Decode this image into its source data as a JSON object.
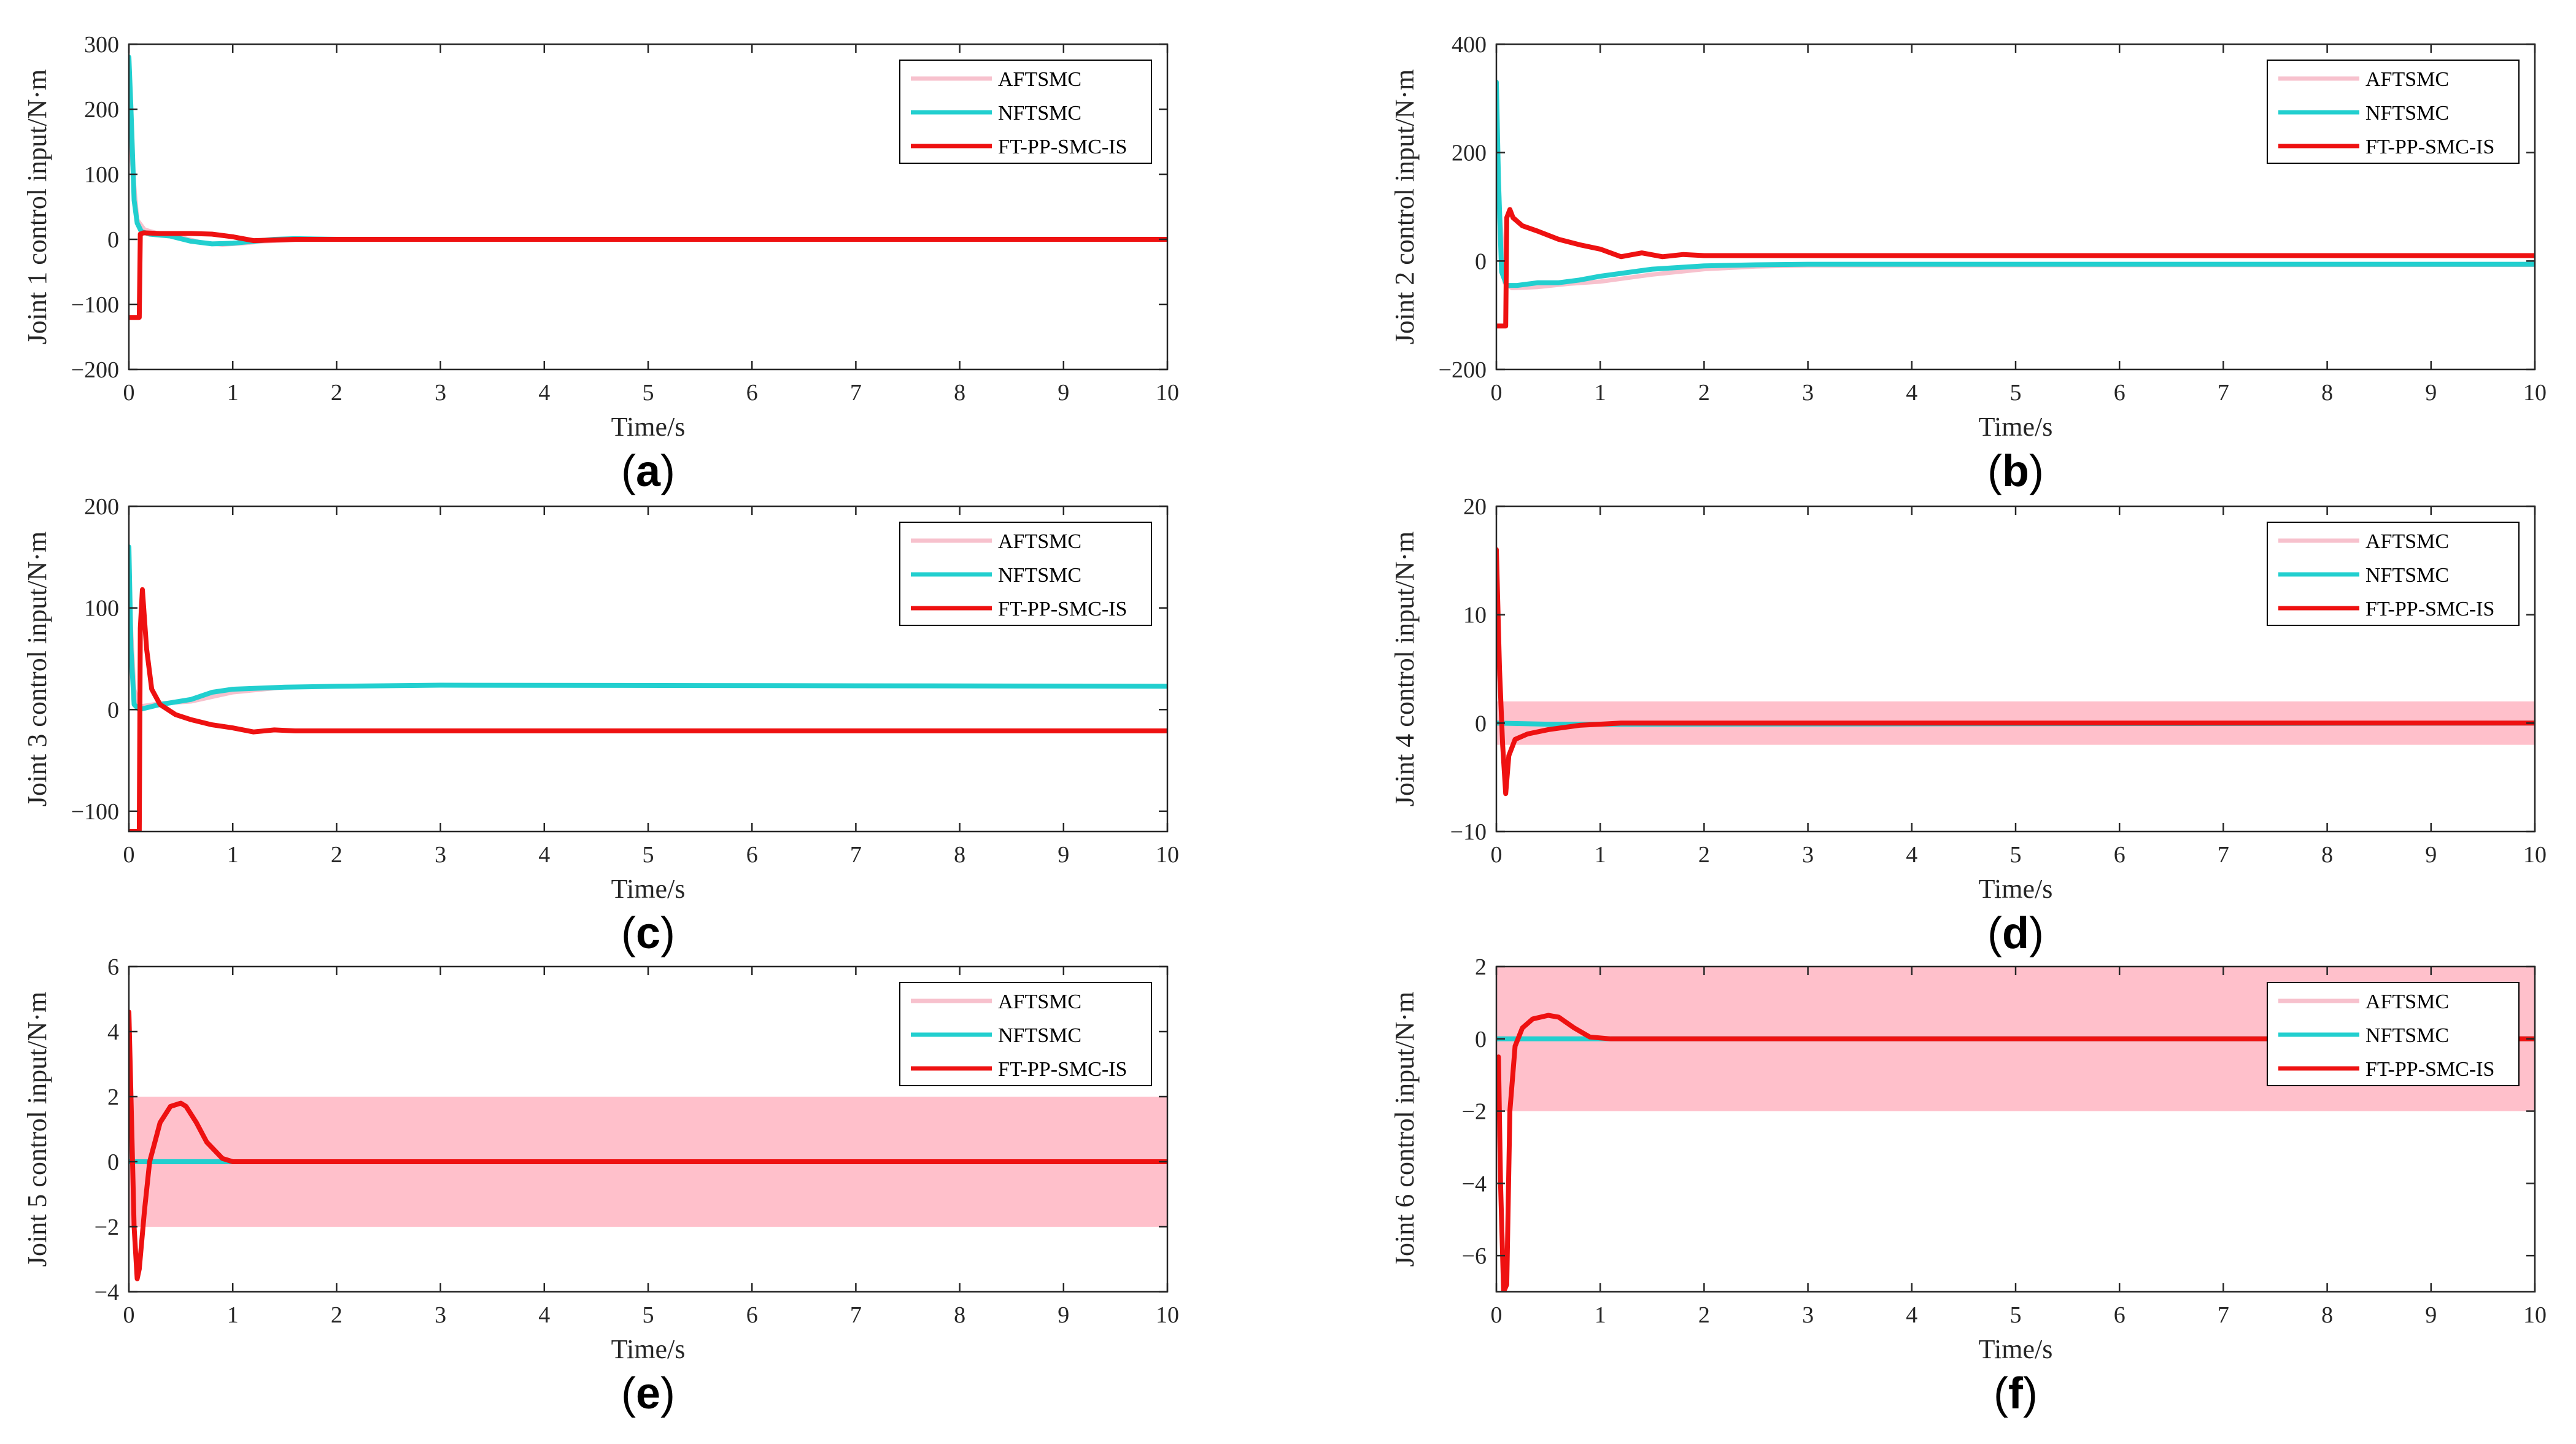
{
  "figure": {
    "colors": {
      "AFTSMC": "#f7c1cd",
      "NFTSMC": "#22cfcf",
      "FT-PP-SMC-IS": "#ee1111",
      "band": "#ffc0cb",
      "axis": "#262626"
    }
  },
  "chart_data": [
    {
      "type": "line",
      "panel": "a",
      "xlabel": "Time/s",
      "ylabel": "Joint 1 control input/N·m",
      "xlim": [
        0,
        10
      ],
      "ylim": [
        -200,
        300
      ],
      "xticks": [
        0,
        1,
        2,
        3,
        4,
        5,
        6,
        7,
        8,
        9,
        10
      ],
      "yticks": [
        -200,
        -100,
        0,
        100,
        200,
        300
      ],
      "legend": [
        "AFTSMC",
        "NFTSMC",
        "FT-PP-SMC-IS"
      ],
      "legend_position": "top-right",
      "band": null,
      "series": [
        {
          "name": "AFTSMC",
          "x": [
            0,
            0.03,
            0.08,
            0.15,
            0.3,
            0.5,
            0.7,
            0.9,
            1.1,
            1.3,
            1.6,
            2,
            3,
            10
          ],
          "y": [
            250,
            120,
            30,
            15,
            8,
            3,
            -5,
            -8,
            -6,
            -3,
            -1,
            0,
            0,
            0
          ]
        },
        {
          "name": "NFTSMC",
          "x": [
            0,
            0.02,
            0.05,
            0.08,
            0.12,
            0.2,
            0.4,
            0.6,
            0.8,
            1.0,
            1.2,
            1.4,
            1.6,
            2,
            3,
            10
          ],
          "y": [
            280,
            200,
            60,
            25,
            12,
            8,
            5,
            -3,
            -7,
            -6,
            -3,
            0,
            1,
            0,
            0,
            0
          ]
        },
        {
          "name": "FT-PP-SMC-IS",
          "x": [
            0,
            0.1,
            0.11,
            0.14,
            0.3,
            0.6,
            0.8,
            1.0,
            1.2,
            1.4,
            1.6,
            2,
            3,
            10
          ],
          "y": [
            -120,
            -120,
            8,
            10,
            9,
            9,
            8,
            4,
            -2,
            -1,
            0,
            0,
            0,
            0
          ]
        }
      ]
    },
    {
      "type": "line",
      "panel": "b",
      "xlabel": "Time/s",
      "ylabel": "Joint 2 control input/N·m",
      "xlim": [
        0,
        10
      ],
      "ylim": [
        -200,
        400
      ],
      "xticks": [
        0,
        1,
        2,
        3,
        4,
        5,
        6,
        7,
        8,
        9,
        10
      ],
      "yticks": [
        -200,
        0,
        200,
        400
      ],
      "legend": [
        "AFTSMC",
        "NFTSMC",
        "FT-PP-SMC-IS"
      ],
      "legend_position": "top-right",
      "band": null,
      "series": [
        {
          "name": "AFTSMC",
          "x": [
            0,
            0.03,
            0.08,
            0.15,
            0.4,
            0.7,
            1.0,
            1.5,
            2,
            2.5,
            3,
            10
          ],
          "y": [
            300,
            100,
            -40,
            -50,
            -48,
            -42,
            -38,
            -25,
            -15,
            -10,
            -8,
            -7
          ]
        },
        {
          "name": "NFTSMC",
          "x": [
            0,
            0.02,
            0.05,
            0.1,
            0.2,
            0.4,
            0.6,
            0.8,
            1.0,
            1.5,
            2,
            2.5,
            3,
            10
          ],
          "y": [
            330,
            150,
            -20,
            -45,
            -45,
            -40,
            -40,
            -35,
            -28,
            -15,
            -9,
            -7,
            -6,
            -6
          ]
        },
        {
          "name": "FT-PP-SMC-IS",
          "x": [
            0,
            0.09,
            0.1,
            0.13,
            0.16,
            0.25,
            0.4,
            0.6,
            0.8,
            1.0,
            1.2,
            1.4,
            1.6,
            1.8,
            2,
            3,
            10
          ],
          "y": [
            -120,
            -120,
            80,
            95,
            80,
            65,
            55,
            40,
            30,
            22,
            8,
            15,
            8,
            12,
            10,
            10,
            10
          ]
        }
      ]
    },
    {
      "type": "line",
      "panel": "c",
      "xlabel": "Time/s",
      "ylabel": "Joint 3 control input/N·m",
      "xlim": [
        0,
        10
      ],
      "ylim": [
        -120,
        200
      ],
      "xticks": [
        0,
        1,
        2,
        3,
        4,
        5,
        6,
        7,
        8,
        9,
        10
      ],
      "yticks": [
        -100,
        0,
        100,
        200
      ],
      "legend": [
        "AFTSMC",
        "NFTSMC",
        "FT-PP-SMC-IS"
      ],
      "legend_position": "top-right",
      "band": null,
      "series": [
        {
          "name": "AFTSMC",
          "x": [
            0,
            0.05,
            0.1,
            0.3,
            0.6,
            1.0,
            1.5,
            2,
            3,
            10
          ],
          "y": [
            120,
            20,
            3,
            6,
            8,
            17,
            22,
            23,
            24,
            23
          ]
        },
        {
          "name": "NFTSMC",
          "x": [
            0,
            0.02,
            0.05,
            0.1,
            0.3,
            0.6,
            0.8,
            1.0,
            1.5,
            2,
            3,
            10
          ],
          "y": [
            160,
            60,
            5,
            0,
            5,
            10,
            17,
            20,
            22,
            23,
            24,
            23
          ]
        },
        {
          "name": "FT-PP-SMC-IS",
          "x": [
            0,
            0.1,
            0.11,
            0.13,
            0.17,
            0.22,
            0.3,
            0.45,
            0.6,
            0.8,
            1.0,
            1.2,
            1.4,
            1.6,
            2,
            3,
            10
          ],
          "y": [
            -120,
            -120,
            80,
            118,
            60,
            20,
            5,
            -5,
            -10,
            -15,
            -18,
            -22,
            -20,
            -21,
            -21,
            -21,
            -21
          ]
        }
      ]
    },
    {
      "type": "line",
      "panel": "d",
      "xlabel": "Time/s",
      "ylabel": "Joint 4 control input/N·m",
      "xlim": [
        0,
        10
      ],
      "ylim": [
        -10,
        20
      ],
      "xticks": [
        0,
        1,
        2,
        3,
        4,
        5,
        6,
        7,
        8,
        9,
        10
      ],
      "yticks": [
        -10,
        0,
        10,
        20
      ],
      "legend": [
        "AFTSMC",
        "NFTSMC",
        "FT-PP-SMC-IS"
      ],
      "legend_position": "top-right",
      "band": [
        -2,
        2
      ],
      "series": [
        {
          "name": "AFTSMC",
          "x": [
            0,
            10
          ],
          "y": [
            0,
            0
          ]
        },
        {
          "name": "NFTSMC",
          "x": [
            0,
            0.5,
            1,
            10
          ],
          "y": [
            0,
            -0.1,
            -0.1,
            0
          ]
        },
        {
          "name": "FT-PP-SMC-IS",
          "x": [
            0,
            0.03,
            0.06,
            0.09,
            0.12,
            0.18,
            0.3,
            0.5,
            0.8,
            1.2,
            10
          ],
          "y": [
            16,
            5,
            -2,
            -6.5,
            -3,
            -1.5,
            -1,
            -0.6,
            -0.2,
            0,
            0
          ]
        }
      ]
    },
    {
      "type": "line",
      "panel": "e",
      "xlabel": "Time/s",
      "ylabel": "Joint 5 control input/N·m",
      "xlim": [
        0,
        10
      ],
      "ylim": [
        -4,
        6
      ],
      "xticks": [
        0,
        1,
        2,
        3,
        4,
        5,
        6,
        7,
        8,
        9,
        10
      ],
      "yticks": [
        -4,
        -2,
        0,
        2,
        4,
        6
      ],
      "legend": [
        "AFTSMC",
        "NFTSMC",
        "FT-PP-SMC-IS"
      ],
      "legend_position": "top-right",
      "band": [
        -2,
        2
      ],
      "series": [
        {
          "name": "AFTSMC",
          "x": [
            0,
            10
          ],
          "y": [
            0,
            0
          ]
        },
        {
          "name": "NFTSMC",
          "x": [
            0,
            10
          ],
          "y": [
            0,
            0
          ]
        },
        {
          "name": "FT-PP-SMC-IS",
          "x": [
            0,
            0.02,
            0.05,
            0.08,
            0.1,
            0.15,
            0.2,
            0.3,
            0.4,
            0.5,
            0.55,
            0.65,
            0.75,
            0.9,
            1.0,
            10
          ],
          "y": [
            4.6,
            2,
            -2,
            -3.6,
            -3.3,
            -1.5,
            0,
            1.2,
            1.7,
            1.8,
            1.7,
            1.2,
            0.6,
            0.1,
            0,
            0
          ]
        }
      ]
    },
    {
      "type": "line",
      "panel": "f",
      "xlabel": "Time/s",
      "ylabel": "Joint 6 control input/N·m",
      "xlim": [
        0,
        10
      ],
      "ylim": [
        -7,
        2
      ],
      "xticks": [
        0,
        1,
        2,
        3,
        4,
        5,
        6,
        7,
        8,
        9,
        10
      ],
      "yticks": [
        -6,
        -4,
        -2,
        0,
        2
      ],
      "legend": [
        "AFTSMC",
        "NFTSMC",
        "FT-PP-SMC-IS"
      ],
      "legend_position": "top-right",
      "band": [
        -2,
        2
      ],
      "series": [
        {
          "name": "AFTSMC",
          "x": [
            0,
            10
          ],
          "y": [
            0,
            0
          ]
        },
        {
          "name": "NFTSMC",
          "x": [
            0,
            10
          ],
          "y": [
            0,
            0
          ]
        },
        {
          "name": "FT-PP-SMC-IS",
          "x": [
            0,
            0.02,
            0.04,
            0.07,
            0.1,
            0.13,
            0.18,
            0.25,
            0.35,
            0.5,
            0.6,
            0.75,
            0.9,
            1.1,
            10
          ],
          "y": [
            -1,
            -0.5,
            -4,
            -7,
            -6.8,
            -2,
            -0.2,
            0.3,
            0.55,
            0.65,
            0.6,
            0.3,
            0.05,
            0,
            0
          ]
        }
      ]
    }
  ]
}
